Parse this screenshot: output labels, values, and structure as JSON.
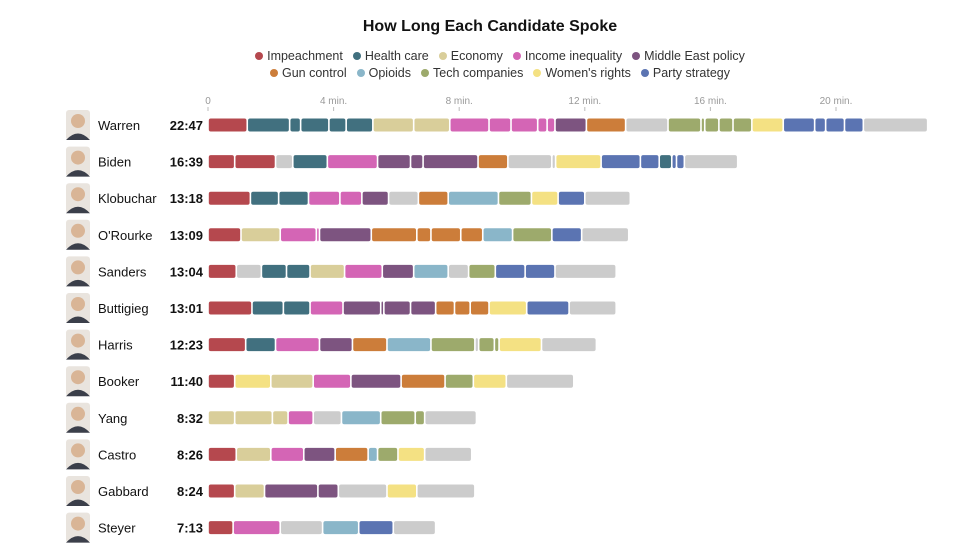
{
  "chart_data": {
    "type": "bar",
    "title": "How Long Each Candidate Spoke",
    "x_axis": {
      "ticks": [
        0,
        4,
        8,
        12,
        16,
        20
      ],
      "tick_labels": [
        "0",
        "4 min.",
        "8 min.",
        "12 min.",
        "16 min.",
        "20 min."
      ],
      "unit": "minutes",
      "range": [
        0,
        23
      ]
    },
    "topics": [
      {
        "key": "impeachment",
        "label": "Impeachment",
        "color": "#b5484e"
      },
      {
        "key": "health",
        "label": "Health care",
        "color": "#41707f"
      },
      {
        "key": "economy",
        "label": "Economy",
        "color": "#d9ce9a"
      },
      {
        "key": "income",
        "label": "Income inequality",
        "color": "#d465b5"
      },
      {
        "key": "mideast",
        "label": "Middle East policy",
        "color": "#7d5480"
      },
      {
        "key": "gun",
        "label": "Gun control",
        "color": "#cc7d3a"
      },
      {
        "key": "opioids",
        "label": "Opioids",
        "color": "#8ab6c9"
      },
      {
        "key": "tech",
        "label": "Tech companies",
        "color": "#9daa6c"
      },
      {
        "key": "women",
        "label": "Women's rights",
        "color": "#f4e183"
      },
      {
        "key": "party",
        "label": "Party strategy",
        "color": "#5b74b2"
      },
      {
        "key": "other",
        "label": "",
        "color": "#cccccc"
      }
    ],
    "candidates": [
      {
        "name": "Warren",
        "total": "22:47",
        "segments": [
          [
            "impeachment",
            1.25
          ],
          [
            "health",
            1.35
          ],
          [
            "health",
            0.35
          ],
          [
            "health",
            0.9
          ],
          [
            "health",
            0.55
          ],
          [
            "health",
            0.85
          ],
          [
            "economy",
            1.3
          ],
          [
            "economy",
            1.15
          ],
          [
            "income",
            1.25
          ],
          [
            "income",
            0.7
          ],
          [
            "income",
            0.85
          ],
          [
            "income",
            0.3
          ],
          [
            "income",
            0.25
          ],
          [
            "mideast",
            1.0
          ],
          [
            "gun",
            1.25
          ],
          [
            "other",
            1.35
          ],
          [
            "tech",
            1.05
          ],
          [
            "tech",
            0.12
          ],
          [
            "tech",
            0.45
          ],
          [
            "tech",
            0.45
          ],
          [
            "tech",
            0.6
          ],
          [
            "women",
            1.0
          ],
          [
            "party",
            1.0
          ],
          [
            "party",
            0.35
          ],
          [
            "party",
            0.6
          ],
          [
            "party",
            0.6
          ],
          [
            "other",
            2.05
          ]
        ]
      },
      {
        "name": "Biden",
        "total": "16:39",
        "segments": [
          [
            "impeachment",
            0.85
          ],
          [
            "impeachment",
            1.3
          ],
          [
            "other",
            0.55
          ],
          [
            "health",
            1.1
          ],
          [
            "income",
            1.6
          ],
          [
            "mideast",
            1.05
          ],
          [
            "mideast",
            0.4
          ],
          [
            "mideast",
            1.75
          ],
          [
            "gun",
            0.95
          ],
          [
            "other",
            1.4
          ],
          [
            "other",
            0.12
          ],
          [
            "women",
            1.45
          ],
          [
            "party",
            1.25
          ],
          [
            "party",
            0.6
          ],
          [
            "health",
            0.4
          ],
          [
            "party",
            0.15
          ],
          [
            "party",
            0.25
          ],
          [
            "other",
            1.7
          ]
        ]
      },
      {
        "name": "Klobuchar",
        "total": "13:18",
        "segments": [
          [
            "impeachment",
            1.35
          ],
          [
            "health",
            0.9
          ],
          [
            "health",
            0.95
          ],
          [
            "income",
            1.0
          ],
          [
            "income",
            0.7
          ],
          [
            "mideast",
            0.85
          ],
          [
            "other",
            0.95
          ],
          [
            "gun",
            0.95
          ],
          [
            "opioids",
            1.6
          ],
          [
            "tech",
            1.05
          ],
          [
            "women",
            0.85
          ],
          [
            "party",
            0.85
          ],
          [
            "other",
            1.45
          ]
        ]
      },
      {
        "name": "O'Rourke",
        "total": "13:09",
        "segments": [
          [
            "impeachment",
            1.05
          ],
          [
            "economy",
            1.25
          ],
          [
            "income",
            1.15
          ],
          [
            "income",
            0.1
          ],
          [
            "mideast",
            1.65
          ],
          [
            "gun",
            1.45
          ],
          [
            "gun",
            0.45
          ],
          [
            "gun",
            0.95
          ],
          [
            "gun",
            0.7
          ],
          [
            "opioids",
            0.95
          ],
          [
            "tech",
            1.25
          ],
          [
            "party",
            0.95
          ],
          [
            "other",
            1.5
          ]
        ]
      },
      {
        "name": "Sanders",
        "total": "13:04",
        "segments": [
          [
            "impeachment",
            0.9
          ],
          [
            "other",
            0.8
          ],
          [
            "health",
            0.8
          ],
          [
            "health",
            0.75
          ],
          [
            "economy",
            1.1
          ],
          [
            "income",
            1.2
          ],
          [
            "mideast",
            1.0
          ],
          [
            "opioids",
            1.1
          ],
          [
            "other",
            0.65
          ],
          [
            "tech",
            0.85
          ],
          [
            "party",
            0.95
          ],
          [
            "party",
            0.95
          ],
          [
            "other",
            1.95
          ]
        ]
      },
      {
        "name": "Buttigieg",
        "total": "13:01",
        "segments": [
          [
            "impeachment",
            1.4
          ],
          [
            "health",
            1.0
          ],
          [
            "health",
            0.85
          ],
          [
            "income",
            1.05
          ],
          [
            "mideast",
            1.2
          ],
          [
            "mideast",
            0.1
          ],
          [
            "mideast",
            0.85
          ],
          [
            "mideast",
            0.8
          ],
          [
            "gun",
            0.6
          ],
          [
            "gun",
            0.5
          ],
          [
            "gun",
            0.6
          ],
          [
            "women",
            1.2
          ],
          [
            "party",
            1.35
          ],
          [
            "other",
            1.5
          ]
        ]
      },
      {
        "name": "Harris",
        "total": "12:23",
        "segments": [
          [
            "impeachment",
            1.2
          ],
          [
            "health",
            0.95
          ],
          [
            "income",
            1.4
          ],
          [
            "mideast",
            1.05
          ],
          [
            "gun",
            1.1
          ],
          [
            "opioids",
            1.4
          ],
          [
            "tech",
            1.4
          ],
          [
            "other",
            0.12
          ],
          [
            "tech",
            0.5
          ],
          [
            "tech",
            0.15
          ],
          [
            "women",
            1.35
          ],
          [
            "other",
            1.75
          ]
        ]
      },
      {
        "name": "Booker",
        "total": "11:40",
        "segments": [
          [
            "impeachment",
            0.85
          ],
          [
            "women",
            1.15
          ],
          [
            "economy",
            1.35
          ],
          [
            "income",
            1.2
          ],
          [
            "mideast",
            1.6
          ],
          [
            "gun",
            1.4
          ],
          [
            "tech",
            0.9
          ],
          [
            "women",
            1.05
          ],
          [
            "other",
            2.15
          ]
        ]
      },
      {
        "name": "Yang",
        "total": "8:32",
        "segments": [
          [
            "economy",
            0.85
          ],
          [
            "economy",
            1.2
          ],
          [
            "economy",
            0.5
          ],
          [
            "income",
            0.8
          ],
          [
            "other",
            0.9
          ],
          [
            "opioids",
            1.25
          ],
          [
            "tech",
            1.1
          ],
          [
            "tech",
            0.3
          ],
          [
            "other",
            1.65
          ]
        ]
      },
      {
        "name": "Castro",
        "total": "8:26",
        "segments": [
          [
            "impeachment",
            0.9
          ],
          [
            "economy",
            1.1
          ],
          [
            "income",
            1.05
          ],
          [
            "mideast",
            1.0
          ],
          [
            "gun",
            1.05
          ],
          [
            "opioids",
            0.3
          ],
          [
            "tech",
            0.65
          ],
          [
            "women",
            0.85
          ],
          [
            "other",
            1.5
          ]
        ]
      },
      {
        "name": "Gabbard",
        "total": "8:24",
        "segments": [
          [
            "impeachment",
            0.85
          ],
          [
            "economy",
            0.95
          ],
          [
            "mideast",
            1.7
          ],
          [
            "mideast",
            0.65
          ],
          [
            "other",
            1.55
          ],
          [
            "women",
            0.95
          ],
          [
            "other",
            1.85
          ]
        ]
      },
      {
        "name": "Steyer",
        "total": "7:13",
        "segments": [
          [
            "impeachment",
            0.8
          ],
          [
            "income",
            1.5
          ],
          [
            "other",
            1.35
          ],
          [
            "opioids",
            1.15
          ],
          [
            "party",
            1.1
          ],
          [
            "other",
            1.35
          ]
        ]
      }
    ]
  }
}
